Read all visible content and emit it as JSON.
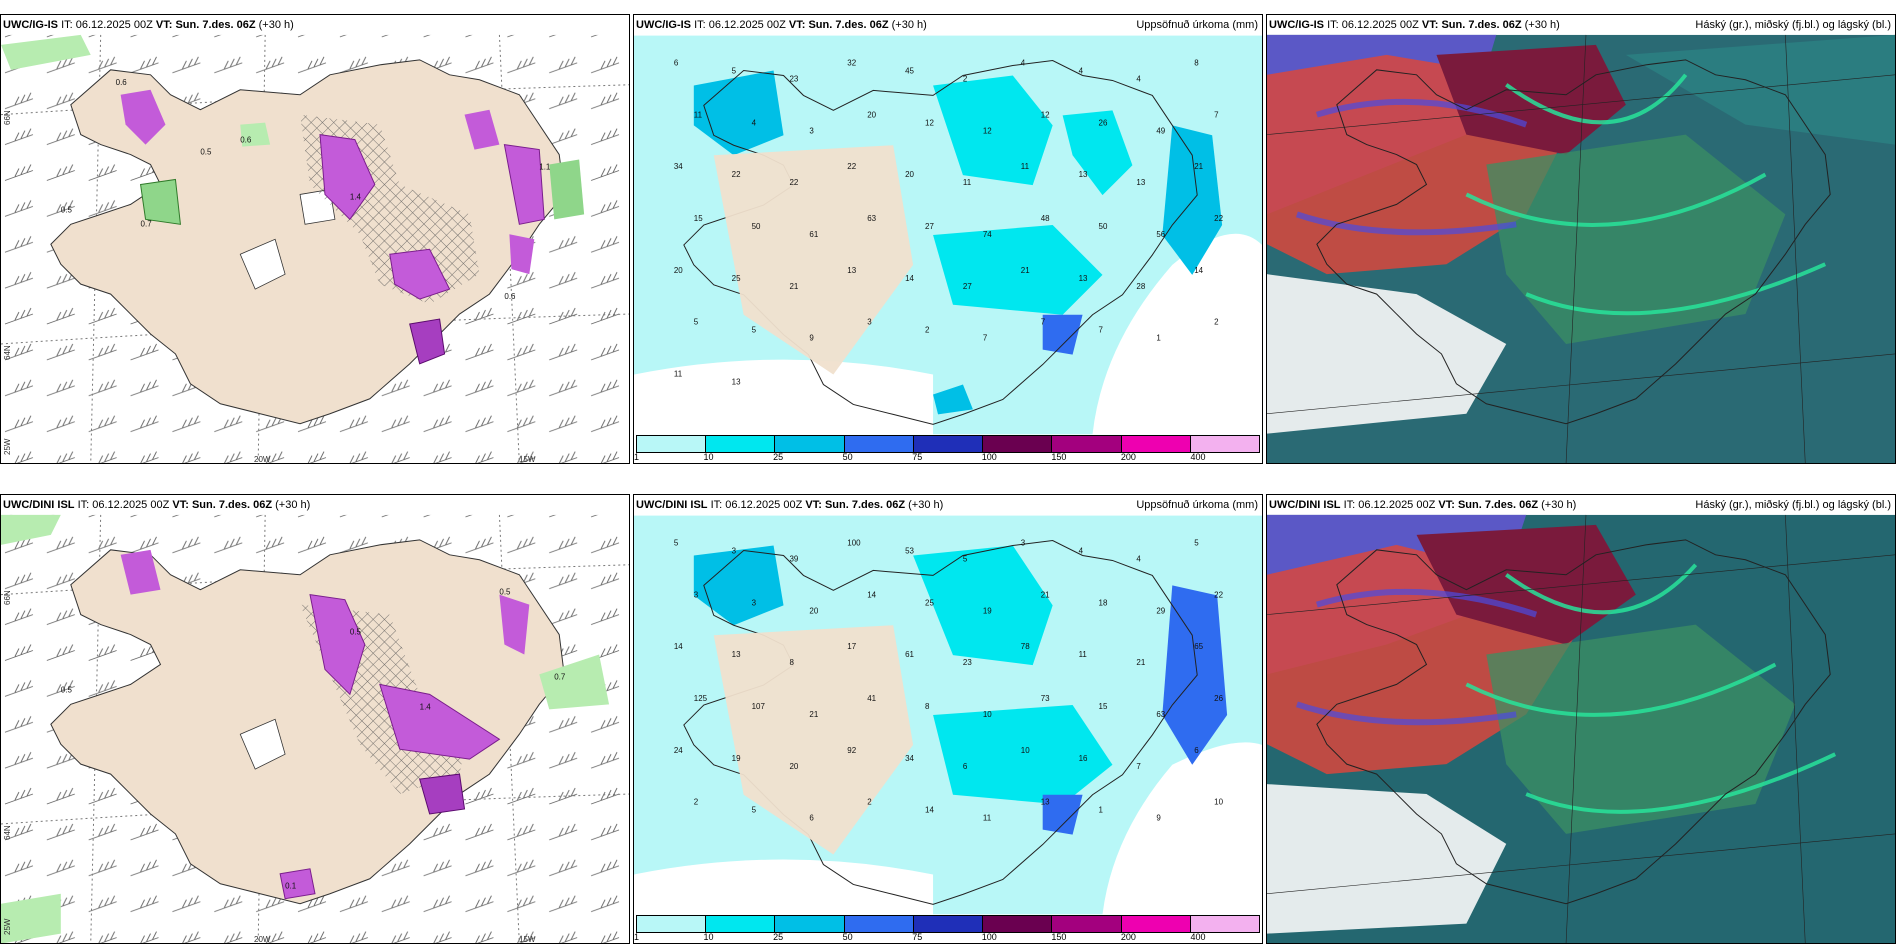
{
  "row_top": {
    "p1": {
      "model": "UWC/IG-IS",
      "it_label": "IT:",
      "it": "06.12.2025 00Z",
      "vt_label": "VT:",
      "vt": "Sun. 7.des. 06Z",
      "lead": "(+30 h)",
      "title": ""
    },
    "p2": {
      "model": "UWC/IG-IS",
      "it_label": "IT:",
      "it": "06.12.2025 00Z",
      "vt_label": "VT:",
      "vt": "Sun. 7.des. 06Z",
      "lead": "(+30 h)",
      "title": "Uppsöfnuð úrkoma (mm)"
    },
    "p3": {
      "model": "UWC/IG-IS",
      "it_label": "IT:",
      "it": "06.12.2025 00Z",
      "vt_label": "VT:",
      "vt": "Sun. 7.des. 06Z",
      "lead": "(+30 h)",
      "title": "Háský (gr.), miðský (fj.bl.) og lágský (bl.)"
    }
  },
  "row_bottom": {
    "p1": {
      "model": "UWC/DINI ISL",
      "it_label": "IT:",
      "it": "06.12.2025 00Z",
      "vt_label": "VT:",
      "vt": "Sun. 7.des. 06Z",
      "lead": "(+30 h)",
      "title": ""
    },
    "p2": {
      "model": "UWC/DINI ISL",
      "it_label": "IT:",
      "it": "06.12.2025 00Z",
      "vt_label": "VT:",
      "vt": "Sun. 7.des. 06Z",
      "lead": "(+30 h)",
      "title": "Uppsöfnuð úrkoma (mm)"
    },
    "p3": {
      "model": "UWC/DINI ISL",
      "it_label": "IT:",
      "it": "06.12.2025 00Z",
      "vt_label": "VT:",
      "vt": "Sun. 7.des. 06Z",
      "lead": "(+30 h)",
      "title": "Háský (gr.), miðský (fj.bl.) og lágský (bl.)"
    }
  },
  "axes": {
    "lat_66": "66N",
    "lat_64": "64N",
    "lon_25": "25W",
    "lon_20": "20W",
    "lon_15": "15W"
  },
  "legend": {
    "ticks": [
      "1",
      "10",
      "25",
      "50",
      "75",
      "100",
      "150",
      "200",
      "400"
    ],
    "colors": [
      "#b8f7f7",
      "#00e7ef",
      "#00bfe6",
      "#2f6cf0",
      "#1f2fb8",
      "#6a0050",
      "#a3007e",
      "#ee00b0",
      "#f3b1ef"
    ]
  },
  "precip_labels_top": [
    "6",
    "5",
    "23",
    "32",
    "45",
    "2",
    "4",
    "4",
    "4",
    "8",
    "11",
    "4",
    "3",
    "20",
    "12",
    "12",
    "12",
    "26",
    "49",
    "7",
    "34",
    "22",
    "22",
    "22",
    "20",
    "11",
    "11",
    "13",
    "13",
    "21",
    "15",
    "50",
    "61",
    "63",
    "27",
    "74",
    "48",
    "50",
    "56",
    "22",
    "20",
    "25",
    "21",
    "13",
    "14",
    "27",
    "21",
    "13",
    "28",
    "14",
    "5",
    "5",
    "9",
    "3",
    "2",
    "7",
    "7",
    "7",
    "1",
    "2",
    "11",
    "13"
  ],
  "precip_labels_bottom": [
    "5",
    "3",
    "39",
    "100",
    "53",
    "5",
    "3",
    "4",
    "4",
    "5",
    "3",
    "3",
    "20",
    "14",
    "25",
    "19",
    "21",
    "18",
    "29",
    "22",
    "14",
    "13",
    "8",
    "17",
    "61",
    "23",
    "78",
    "11",
    "21",
    "65",
    "125",
    "107",
    "21",
    "41",
    "8",
    "10",
    "73",
    "15",
    "63",
    "26",
    "24",
    "19",
    "20",
    "92",
    "34",
    "6",
    "10",
    "16",
    "7",
    "6",
    "2",
    "5",
    "6",
    "2",
    "14",
    "11",
    "13",
    "1",
    "9",
    "10"
  ]
}
